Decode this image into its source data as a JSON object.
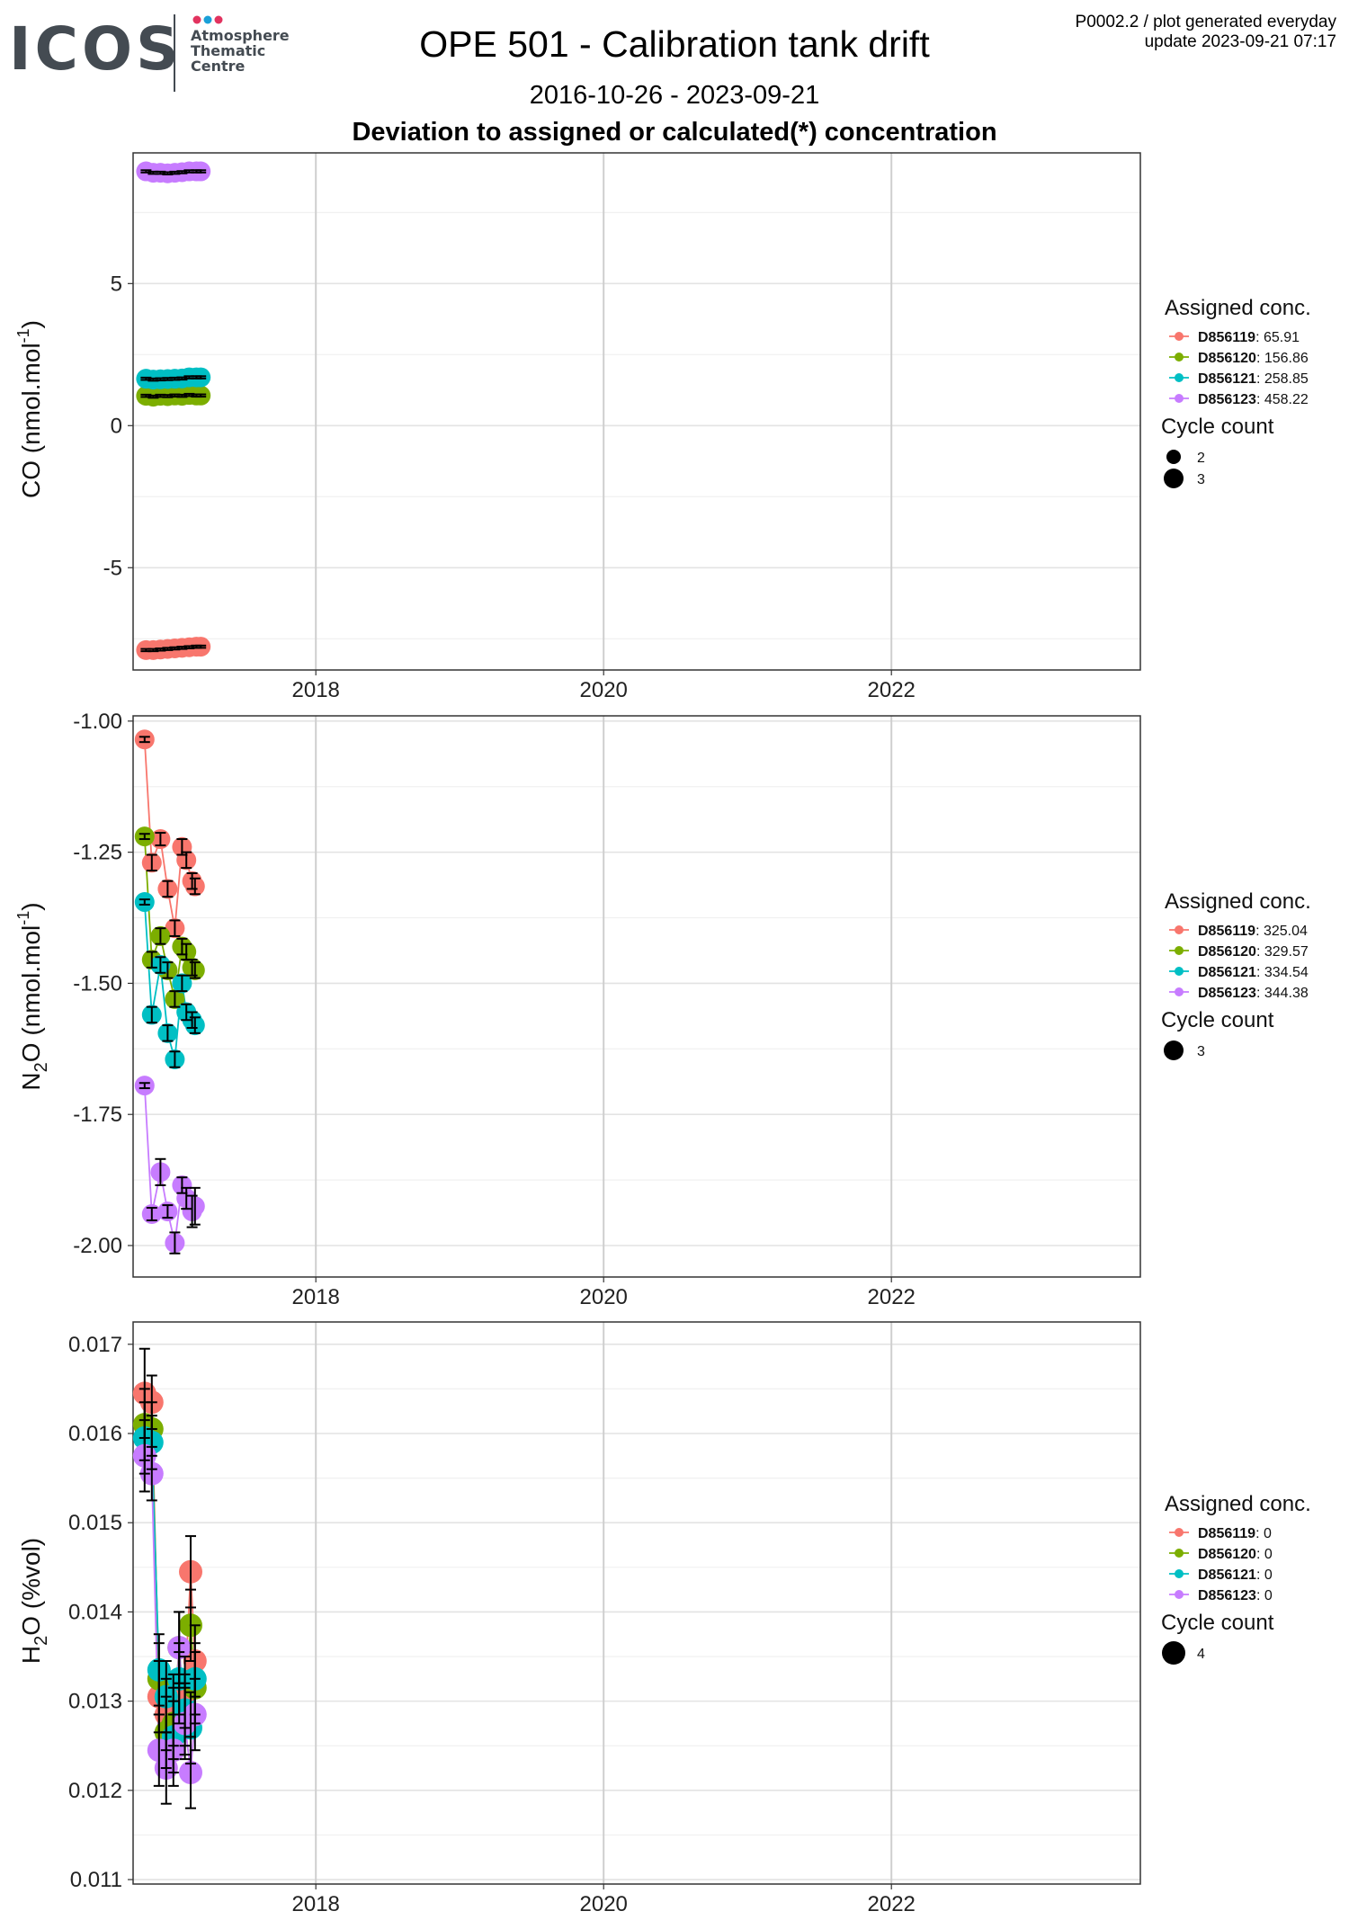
{
  "header": {
    "logo_text": "ICOS",
    "logo_sub": [
      "Atmosphere",
      "Thematic",
      "Centre"
    ],
    "logo_dot_colors": [
      "#e2335f",
      "#1aa0d8",
      "#e2335f"
    ],
    "title": "OPE 501 - Calibration tank drift",
    "meta_line1": "P0002.2 / plot generated everyday",
    "meta_line2": "update  2023-09-21 07:17",
    "date_range": "2016-10-26 - 2023-09-21",
    "subtitle": "Deviation to assigned or calculated(*) concentration"
  },
  "colors": {
    "D856119": "#f8766d",
    "D856120": "#7cae00",
    "D856121": "#00bfc4",
    "D856123": "#c77cff"
  },
  "chart_data": [
    {
      "type": "scatter",
      "gas": "CO",
      "ylabel_main": "CO (nmol.mol",
      "ylabel_sup": "-1",
      "ylabel_end": ")",
      "x_range": [
        2016.73,
        2023.73
      ],
      "ylim": [
        -8.6,
        9.6
      ],
      "yticks": [
        -5,
        0,
        5
      ],
      "ytick_labels": [
        "-5",
        "0",
        "5"
      ],
      "xticks": [
        2018,
        2020,
        2022
      ],
      "xtick_labels": [
        "2018",
        "2020",
        "2022"
      ],
      "grid": true,
      "legend": {
        "title": "Assigned conc.",
        "entries": [
          {
            "id": "D856119",
            "value": ": 65.91"
          },
          {
            "id": "D856120",
            "value": ": 156.86"
          },
          {
            "id": "D856121",
            "value": ": 258.85"
          },
          {
            "id": "D856123",
            "value": ": 458.22"
          }
        ],
        "size_title": "Cycle count",
        "sizes": [
          {
            "label": "2",
            "r": 8
          },
          {
            "label": "3",
            "r": 11
          }
        ]
      },
      "series": [
        {
          "name": "D856119",
          "x": [
            2016.82,
            2016.87,
            2016.92,
            2016.97,
            2017.02,
            2017.07,
            2017.12,
            2017.17,
            2017.2
          ],
          "y": [
            -7.9,
            -7.9,
            -7.88,
            -7.86,
            -7.84,
            -7.82,
            -7.8,
            -7.78,
            -7.78
          ],
          "err": [
            0.04,
            0.04,
            0.04,
            0.04,
            0.04,
            0.04,
            0.04,
            0.04,
            0.04
          ],
          "size": [
            3,
            3,
            3,
            3,
            3,
            3,
            3,
            3,
            3
          ]
        },
        {
          "name": "D856120",
          "x": [
            2016.82,
            2016.87,
            2016.92,
            2016.97,
            2017.02,
            2017.07,
            2017.12,
            2017.17,
            2017.2
          ],
          "y": [
            1.05,
            1.02,
            1.05,
            1.04,
            1.06,
            1.05,
            1.08,
            1.06,
            1.06
          ],
          "err": [
            0.04,
            0.04,
            0.04,
            0.04,
            0.04,
            0.04,
            0.04,
            0.04,
            0.04
          ],
          "size": [
            3,
            3,
            3,
            3,
            3,
            3,
            3,
            3,
            3
          ]
        },
        {
          "name": "D856121",
          "x": [
            2016.82,
            2016.87,
            2016.92,
            2016.97,
            2017.02,
            2017.07,
            2017.12,
            2017.17,
            2017.2
          ],
          "y": [
            1.65,
            1.62,
            1.63,
            1.64,
            1.65,
            1.66,
            1.7,
            1.7,
            1.7
          ],
          "err": [
            0.04,
            0.04,
            0.04,
            0.04,
            0.04,
            0.04,
            0.04,
            0.04,
            0.04
          ],
          "size": [
            3,
            3,
            3,
            3,
            3,
            3,
            3,
            3,
            3
          ]
        },
        {
          "name": "D856123",
          "x": [
            2016.82,
            2016.87,
            2016.92,
            2016.97,
            2017.02,
            2017.07,
            2017.12,
            2017.17,
            2017.2
          ],
          "y": [
            8.95,
            8.9,
            8.9,
            8.88,
            8.9,
            8.92,
            8.95,
            8.95,
            8.95
          ],
          "err": [
            0.04,
            0.04,
            0.04,
            0.04,
            0.04,
            0.04,
            0.04,
            0.04,
            0.04
          ],
          "size": [
            3,
            3,
            3,
            3,
            3,
            3,
            3,
            3,
            3
          ]
        }
      ]
    },
    {
      "type": "scatter",
      "gas": "N2O",
      "ylabel_main": "N",
      "ylabel_sub": "2",
      "ylabel_mid": "O (nmol.mol",
      "ylabel_sup": "-1",
      "ylabel_end": ")",
      "x_range": [
        2016.73,
        2023.73
      ],
      "ylim": [
        -2.06,
        -0.99
      ],
      "yticks": [
        -2.0,
        -1.75,
        -1.5,
        -1.25,
        -1.0
      ],
      "ytick_labels": [
        "-2.00",
        "-1.75",
        "-1.50",
        "-1.25",
        "-1.00"
      ],
      "xticks": [
        2018,
        2020,
        2022
      ],
      "xtick_labels": [
        "2018",
        "2020",
        "2022"
      ],
      "grid": true,
      "legend": {
        "title": "Assigned conc.",
        "entries": [
          {
            "id": "D856119",
            "value": ": 325.04"
          },
          {
            "id": "D856120",
            "value": ": 329.57"
          },
          {
            "id": "D856121",
            "value": ": 334.54"
          },
          {
            "id": "D856123",
            "value": ": 344.38"
          }
        ],
        "size_title": "Cycle count",
        "sizes": [
          {
            "label": "3",
            "r": 11
          }
        ]
      },
      "series": [
        {
          "name": "D856119",
          "x": [
            2016.81,
            2016.86,
            2016.92,
            2016.97,
            2017.02,
            2017.07,
            2017.1,
            2017.14,
            2017.16
          ],
          "y": [
            -1.035,
            -1.27,
            -1.225,
            -1.32,
            -1.395,
            -1.24,
            -1.265,
            -1.305,
            -1.315
          ],
          "err": [
            0.005,
            0.015,
            0.012,
            0.015,
            0.015,
            0.015,
            0.015,
            0.015,
            0.015
          ],
          "size": [
            3,
            3,
            3,
            3,
            3,
            3,
            3,
            3,
            3
          ]
        },
        {
          "name": "D856120",
          "x": [
            2016.81,
            2016.86,
            2016.92,
            2016.97,
            2017.02,
            2017.07,
            2017.1,
            2017.14,
            2017.16
          ],
          "y": [
            -1.22,
            -1.455,
            -1.41,
            -1.475,
            -1.53,
            -1.43,
            -1.44,
            -1.47,
            -1.475
          ],
          "err": [
            0.005,
            0.015,
            0.015,
            0.015,
            0.015,
            0.015,
            0.015,
            0.015,
            0.015
          ],
          "size": [
            3,
            3,
            3,
            3,
            3,
            3,
            3,
            3,
            3
          ]
        },
        {
          "name": "D856121",
          "x": [
            2016.81,
            2016.86,
            2016.92,
            2016.97,
            2017.02,
            2017.07,
            2017.1,
            2017.14,
            2017.16
          ],
          "y": [
            -1.345,
            -1.56,
            -1.465,
            -1.595,
            -1.645,
            -1.5,
            -1.555,
            -1.57,
            -1.58
          ],
          "err": [
            0.005,
            0.015,
            0.015,
            0.015,
            0.015,
            0.015,
            0.015,
            0.015,
            0.015
          ],
          "size": [
            3,
            3,
            3,
            3,
            3,
            3,
            3,
            3,
            3
          ]
        },
        {
          "name": "D856123",
          "x": [
            2016.81,
            2016.86,
            2016.92,
            2016.97,
            2017.02,
            2017.07,
            2017.1,
            2017.14,
            2017.16
          ],
          "y": [
            -1.695,
            -1.94,
            -1.86,
            -1.935,
            -1.995,
            -1.885,
            -1.91,
            -1.935,
            -1.925
          ],
          "err": [
            0.005,
            0.012,
            0.025,
            0.012,
            0.02,
            0.015,
            0.02,
            0.03,
            0.035
          ],
          "size": [
            3,
            3,
            3,
            3,
            3,
            3,
            3,
            3,
            3
          ]
        }
      ]
    },
    {
      "type": "scatter",
      "gas": "H2O",
      "ylabel_main": "H",
      "ylabel_sub": "2",
      "ylabel_mid": "O (%vol)",
      "ylabel_sup": "",
      "ylabel_end": "",
      "x_range": [
        2016.73,
        2023.73
      ],
      "ylim": [
        0.01095,
        0.01725
      ],
      "yticks": [
        0.011,
        0.012,
        0.013,
        0.014,
        0.015,
        0.016,
        0.017
      ],
      "ytick_labels": [
        "0.011",
        "0.012",
        "0.013",
        "0.014",
        "0.015",
        "0.016",
        "0.017"
      ],
      "xticks": [
        2018,
        2020,
        2022
      ],
      "xtick_labels": [
        "2018",
        "2020",
        "2022"
      ],
      "grid": true,
      "legend": {
        "title": "Assigned conc.",
        "entries": [
          {
            "id": "D856119",
            "value": ": 0"
          },
          {
            "id": "D856120",
            "value": ": 0"
          },
          {
            "id": "D856121",
            "value": ": 0"
          },
          {
            "id": "D856123",
            "value": ": 0"
          }
        ],
        "size_title": "Cycle count",
        "sizes": [
          {
            "label": "4",
            "r": 13
          }
        ]
      },
      "series": [
        {
          "name": "D856119",
          "x": [
            2016.81,
            2016.86,
            2016.91,
            2016.96,
            2017.01,
            2017.05,
            2017.09,
            2017.13,
            2017.16
          ],
          "y": [
            0.01645,
            0.01635,
            0.01305,
            0.01285,
            0.0129,
            0.01315,
            0.0131,
            0.01445,
            0.01345
          ],
          "err": [
            0.0005,
            0.0003,
            0.0004,
            0.0004,
            0.0004,
            0.0004,
            0.0004,
            0.0004,
            0.0004
          ],
          "size": [
            4,
            4,
            4,
            4,
            4,
            4,
            4,
            4,
            4
          ]
        },
        {
          "name": "D856120",
          "x": [
            2016.81,
            2016.86,
            2016.91,
            2016.96,
            2017.01,
            2017.05,
            2017.09,
            2017.13,
            2017.16
          ],
          "y": [
            0.0161,
            0.01605,
            0.01325,
            0.01265,
            0.01275,
            0.0136,
            0.0128,
            0.01385,
            0.01315
          ],
          "err": [
            0.0004,
            0.0003,
            0.0004,
            0.0004,
            0.0004,
            0.0004,
            0.0004,
            0.0004,
            0.0004
          ],
          "size": [
            4,
            4,
            4,
            4,
            4,
            4,
            4,
            4,
            4
          ]
        },
        {
          "name": "D856121",
          "x": [
            2016.81,
            2016.86,
            2016.91,
            2016.96,
            2017.01,
            2017.05,
            2017.09,
            2017.13,
            2017.16
          ],
          "y": [
            0.01595,
            0.0159,
            0.01335,
            0.01305,
            0.0126,
            0.01325,
            0.0129,
            0.0127,
            0.01325
          ],
          "err": [
            0.0004,
            0.0003,
            0.0004,
            0.0004,
            0.0004,
            0.0004,
            0.0004,
            0.0004,
            0.0004
          ],
          "size": [
            4,
            4,
            4,
            4,
            4,
            4,
            4,
            4,
            4
          ]
        },
        {
          "name": "D856123",
          "x": [
            2016.81,
            2016.86,
            2016.91,
            2016.96,
            2017.01,
            2017.05,
            2017.09,
            2017.13,
            2017.16
          ],
          "y": [
            0.01575,
            0.01555,
            0.01245,
            0.01225,
            0.01245,
            0.0136,
            0.01275,
            0.0122,
            0.01285
          ],
          "err": [
            0.0004,
            0.0003,
            0.0004,
            0.0004,
            0.0004,
            0.0004,
            0.0004,
            0.0004,
            0.0004
          ],
          "size": [
            4,
            4,
            4,
            4,
            4,
            4,
            4,
            4,
            4
          ]
        }
      ]
    }
  ]
}
